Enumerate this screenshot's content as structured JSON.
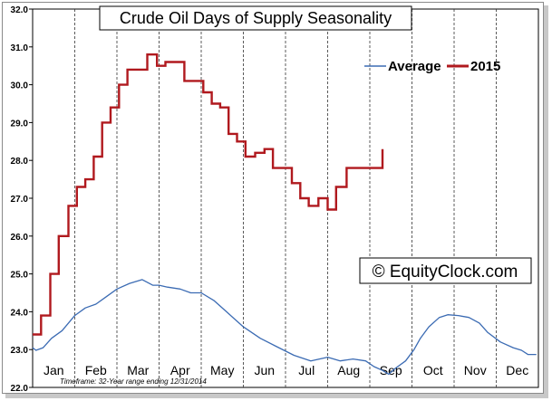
{
  "chart_data": {
    "type": "line",
    "title": "Crude Oil Days of Supply Seasonality",
    "xlabel": "",
    "ylabel": "",
    "ylim": [
      22.0,
      32.0
    ],
    "yticks": [
      "22.0",
      "23.0",
      "24.0",
      "25.0",
      "26.0",
      "27.0",
      "28.0",
      "29.0",
      "30.0",
      "31.0",
      "32.0"
    ],
    "categories": [
      "Jan",
      "Feb",
      "Mar",
      "Apr",
      "May",
      "Jun",
      "Jul",
      "Aug",
      "Sep",
      "Oct",
      "Nov",
      "Dec"
    ],
    "grid": "vertical dashed lines between months",
    "legend_placement": "top-right",
    "series": [
      {
        "name": "Average",
        "color": "#3b6bb3",
        "style": "thin",
        "x": [
          0,
          0.08,
          0.25,
          0.45,
          0.7,
          1.0,
          1.25,
          1.5,
          1.75,
          2.0,
          2.3,
          2.6,
          2.85,
          3.0,
          3.2,
          3.5,
          3.75,
          4.0,
          4.3,
          4.6,
          5.0,
          5.4,
          5.75,
          6.2,
          6.6,
          7.0,
          7.3,
          7.6,
          7.9,
          8.1,
          8.3,
          8.45,
          8.6,
          8.85,
          9.05,
          9.2,
          9.4,
          9.65,
          9.85,
          10.1,
          10.35,
          10.6,
          10.8,
          11.1,
          11.4,
          11.6,
          11.75,
          11.95
        ],
        "values": [
          23.05,
          22.98,
          23.05,
          23.3,
          23.5,
          23.9,
          24.1,
          24.2,
          24.4,
          24.6,
          24.75,
          24.85,
          24.7,
          24.7,
          24.65,
          24.6,
          24.5,
          24.5,
          24.3,
          24.0,
          23.6,
          23.3,
          23.1,
          22.85,
          22.7,
          22.8,
          22.7,
          22.75,
          22.7,
          22.55,
          22.45,
          22.35,
          22.5,
          22.7,
          23.0,
          23.3,
          23.6,
          23.85,
          23.92,
          23.9,
          23.85,
          23.7,
          23.45,
          23.2,
          23.05,
          22.98,
          22.87,
          22.87
        ]
      },
      {
        "name": "2015",
        "color": "#b0191e",
        "style": "thick",
        "step_points": [
          [
            0,
            23.4
          ],
          [
            0.2,
            23.4
          ],
          [
            0.2,
            23.9
          ],
          [
            0.42,
            23.9
          ],
          [
            0.42,
            25.0
          ],
          [
            0.62,
            25.0
          ],
          [
            0.62,
            26.0
          ],
          [
            0.85,
            26.0
          ],
          [
            0.85,
            26.8
          ],
          [
            1.05,
            26.8
          ],
          [
            1.05,
            27.3
          ],
          [
            1.25,
            27.3
          ],
          [
            1.25,
            27.5
          ],
          [
            1.45,
            27.5
          ],
          [
            1.45,
            28.1
          ],
          [
            1.65,
            28.1
          ],
          [
            1.65,
            29.0
          ],
          [
            1.85,
            29.0
          ],
          [
            1.85,
            29.4
          ],
          [
            2.05,
            29.4
          ],
          [
            2.05,
            30.0
          ],
          [
            2.25,
            30.0
          ],
          [
            2.25,
            30.4
          ],
          [
            2.72,
            30.4
          ],
          [
            2.72,
            30.8
          ],
          [
            2.95,
            30.8
          ],
          [
            2.95,
            30.5
          ],
          [
            3.15,
            30.5
          ],
          [
            3.15,
            30.6
          ],
          [
            3.6,
            30.6
          ],
          [
            3.6,
            30.1
          ],
          [
            4.05,
            30.1
          ],
          [
            4.05,
            29.8
          ],
          [
            4.25,
            29.8
          ],
          [
            4.25,
            29.5
          ],
          [
            4.45,
            29.5
          ],
          [
            4.45,
            29.4
          ],
          [
            4.65,
            29.4
          ],
          [
            4.65,
            28.7
          ],
          [
            4.85,
            28.7
          ],
          [
            4.85,
            28.5
          ],
          [
            5.05,
            28.5
          ],
          [
            5.05,
            28.1
          ],
          [
            5.28,
            28.1
          ],
          [
            5.28,
            28.2
          ],
          [
            5.5,
            28.2
          ],
          [
            5.5,
            28.3
          ],
          [
            5.7,
            28.3
          ],
          [
            5.7,
            27.8
          ],
          [
            6.15,
            27.8
          ],
          [
            6.15,
            27.4
          ],
          [
            6.35,
            27.4
          ],
          [
            6.35,
            27.0
          ],
          [
            6.55,
            27.0
          ],
          [
            6.55,
            26.8
          ],
          [
            6.78,
            26.8
          ],
          [
            6.78,
            27.0
          ],
          [
            7.0,
            27.0
          ],
          [
            7.0,
            26.7
          ],
          [
            7.2,
            26.7
          ],
          [
            7.2,
            27.3
          ],
          [
            7.45,
            27.3
          ],
          [
            7.45,
            27.8
          ],
          [
            8.3,
            27.8
          ],
          [
            8.3,
            28.3
          ]
        ]
      }
    ]
  },
  "watermark": "© EquityClock.com",
  "footnote": "Timeframe: 32-Year range ending 12/31/2014"
}
